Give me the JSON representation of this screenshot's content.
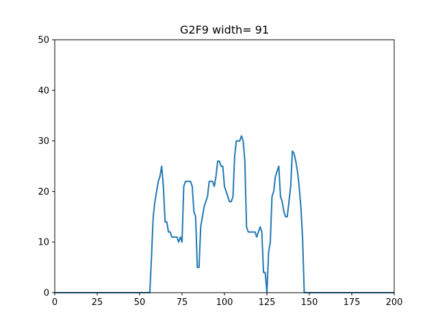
{
  "chart_data": {
    "type": "line",
    "title": "G2F9 width= 91",
    "xlabel": "",
    "ylabel": "",
    "xlim": [
      0,
      200
    ],
    "ylim": [
      0,
      50
    ],
    "xticks": [
      0,
      25,
      50,
      75,
      100,
      125,
      150,
      175,
      200
    ],
    "yticks": [
      0,
      10,
      20,
      30,
      40,
      50
    ],
    "grid": false,
    "line_color": "#1f77b4",
    "series": [
      {
        "x": [
          0,
          56,
          57,
          58,
          59,
          60,
          61,
          62,
          63,
          64,
          65,
          66,
          67,
          68,
          69,
          70,
          71,
          72,
          73,
          74,
          75,
          76,
          77,
          78,
          79,
          80,
          81,
          82,
          83,
          84,
          85,
          86,
          87,
          88,
          89,
          90,
          91,
          92,
          93,
          94,
          95,
          96,
          97,
          98,
          99,
          100,
          101,
          102,
          103,
          104,
          105,
          106,
          107,
          108,
          109,
          110,
          111,
          112,
          113,
          114,
          115,
          116,
          117,
          118,
          119,
          120,
          121,
          122,
          123,
          124,
          125,
          126,
          127,
          128,
          129,
          130,
          131,
          132,
          133,
          134,
          135,
          136,
          137,
          138,
          139,
          140,
          141,
          142,
          143,
          144,
          145,
          146,
          147,
          148,
          200
        ],
        "y": [
          0,
          0,
          7,
          15,
          18,
          20,
          22,
          23,
          25,
          21,
          14,
          14,
          12,
          12,
          11,
          11,
          11,
          11,
          10,
          11,
          10,
          21,
          22,
          22,
          22,
          22,
          21,
          16,
          15,
          5,
          5,
          13,
          15,
          17,
          18,
          19,
          22,
          22,
          22,
          21,
          23,
          26,
          26,
          25,
          25,
          21,
          20,
          19,
          18,
          18,
          19,
          27,
          30,
          30,
          30,
          31,
          30,
          26,
          13,
          12,
          12,
          12,
          12,
          12,
          11,
          12,
          13,
          12,
          4,
          4,
          0,
          8,
          10,
          19,
          20,
          23,
          24,
          25,
          19,
          18,
          16,
          15,
          15,
          18,
          21,
          28,
          27.5,
          26,
          24,
          21,
          17,
          11,
          0,
          0,
          0
        ]
      }
    ]
  }
}
